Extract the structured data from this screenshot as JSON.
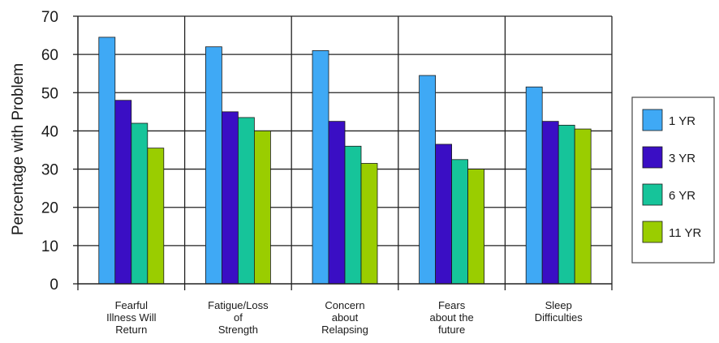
{
  "chart_data": {
    "type": "bar",
    "title": "",
    "xlabel": "",
    "ylabel": "Percentage with Problem",
    "ylim": [
      0,
      70
    ],
    "yticks": [
      0,
      10,
      20,
      30,
      40,
      50,
      60,
      70
    ],
    "grid": true,
    "legend_position": "right",
    "categories": [
      [
        "Fearful",
        "Illness Will",
        "Return"
      ],
      [
        "Fatigue/Loss",
        "of",
        "Strength"
      ],
      [
        "Concern",
        "about",
        "Relapsing"
      ],
      [
        "Fears",
        "about the",
        "future"
      ],
      [
        "Sleep",
        "Difficulties"
      ]
    ],
    "series": [
      {
        "name": "1 YR",
        "color": "#3fa9f5",
        "values": [
          64.5,
          62,
          61,
          54.5,
          51.5
        ]
      },
      {
        "name": "3 YR",
        "color": "#3a0ec4",
        "values": [
          48,
          45,
          42.5,
          36.5,
          42.5
        ]
      },
      {
        "name": "6 YR",
        "color": "#16c49a",
        "values": [
          42,
          43.5,
          36,
          32.5,
          41.5
        ]
      },
      {
        "name": "11 YR",
        "color": "#9acd00",
        "values": [
          35.5,
          40,
          31.5,
          30,
          40.5
        ]
      }
    ]
  }
}
